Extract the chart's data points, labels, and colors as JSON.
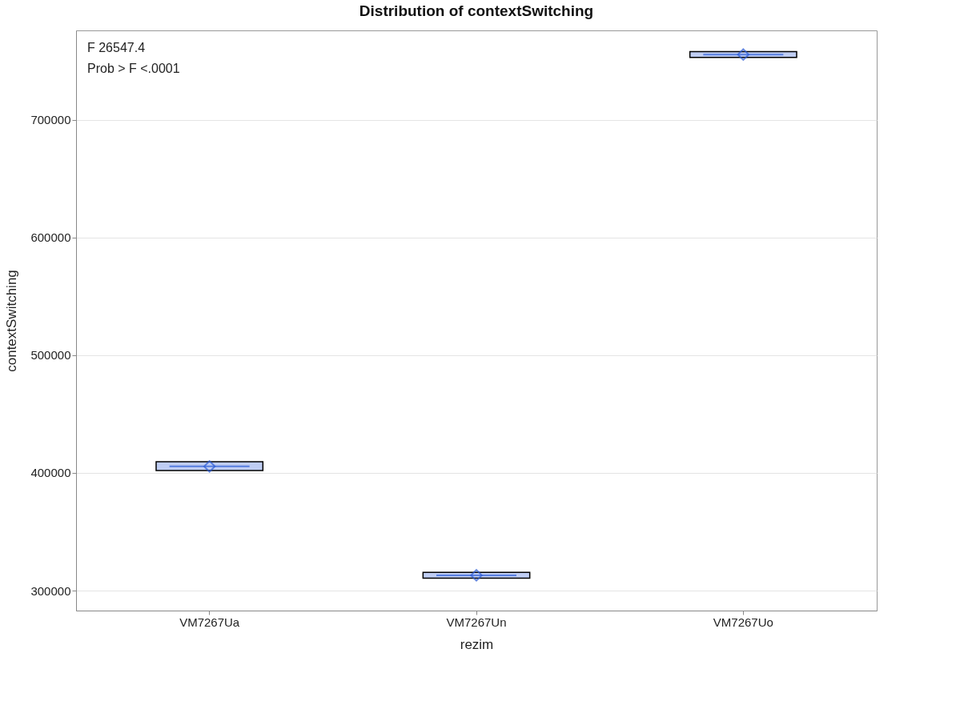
{
  "chart_data": {
    "type": "box",
    "title": "Distribution of contextSwitching",
    "xlabel": "rezim",
    "ylabel": "contextSwitching",
    "categories": [
      "VM7267Ua",
      "VM7267Un",
      "VM7267Uo"
    ],
    "series": [
      {
        "color": "#2a5bd7",
        "boxes": [
          {
            "low": 402000,
            "q1": 402000,
            "median": 405500,
            "q3": 409500,
            "high": 409500,
            "mean": 405500
          },
          {
            "low": 310500,
            "q1": 310500,
            "median": 313000,
            "q3": 315500,
            "high": 315500,
            "mean": 313000
          },
          {
            "low": 753000,
            "q1": 753000,
            "median": 755500,
            "q3": 758000,
            "high": 758000,
            "mean": 755500
          }
        ]
      }
    ],
    "ylim": [
      283000,
      776000
    ],
    "yticks": [
      300000,
      400000,
      500000,
      600000,
      700000
    ],
    "grid": "y",
    "annotations": [
      "F 26547.4",
      "Prob > F <.0001"
    ]
  }
}
